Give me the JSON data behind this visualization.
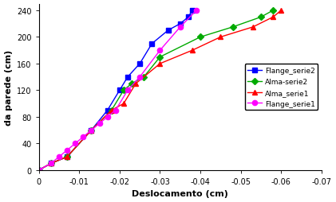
{
  "xlabel": "Deslocamento (cm)",
  "ylabel": "da parede (cm)",
  "xlim_left": 0,
  "xlim_right": -0.07,
  "ylim": [
    0,
    250
  ],
  "yticks": [
    0,
    40,
    80,
    120,
    160,
    200,
    240
  ],
  "xticks": [
    0,
    -0.01,
    -0.02,
    -0.03,
    -0.04,
    -0.05,
    -0.06,
    -0.07
  ],
  "series": {
    "Flange_serie2": {
      "x": [
        0,
        -0.003,
        -0.007,
        -0.013,
        -0.017,
        -0.02,
        -0.022,
        -0.025,
        -0.028,
        -0.032,
        -0.035,
        -0.037,
        -0.038
      ],
      "y": [
        0,
        10,
        20,
        60,
        90,
        120,
        140,
        160,
        190,
        210,
        220,
        230,
        240
      ],
      "color": "#0000FF",
      "marker": "s",
      "markersize": 4.5
    },
    "Alma-serie2": {
      "x": [
        0,
        -0.003,
        -0.007,
        -0.013,
        -0.018,
        -0.021,
        -0.023,
        -0.026,
        -0.03,
        -0.04,
        -0.048,
        -0.055,
        -0.058
      ],
      "y": [
        0,
        10,
        20,
        60,
        90,
        120,
        130,
        140,
        170,
        200,
        215,
        230,
        240
      ],
      "color": "#00AA00",
      "marker": "D",
      "markersize": 4.5
    },
    "Alma_serie1": {
      "x": [
        0,
        -0.003,
        -0.007,
        -0.013,
        -0.018,
        -0.021,
        -0.024,
        -0.03,
        -0.038,
        -0.045,
        -0.053,
        -0.058,
        -0.06
      ],
      "y": [
        0,
        10,
        20,
        60,
        90,
        100,
        130,
        160,
        180,
        200,
        215,
        230,
        240
      ],
      "color": "#FF0000",
      "marker": "^",
      "markersize": 4.5
    },
    "Flange_serie1": {
      "x": [
        0,
        -0.003,
        -0.005,
        -0.007,
        -0.009,
        -0.011,
        -0.013,
        -0.015,
        -0.017,
        -0.019,
        -0.022,
        -0.025,
        -0.03,
        -0.035,
        -0.039
      ],
      "y": [
        0,
        10,
        20,
        30,
        40,
        50,
        60,
        70,
        80,
        90,
        120,
        140,
        180,
        215,
        240
      ],
      "color": "#FF00FF",
      "marker": "o",
      "markersize": 4.5
    }
  }
}
